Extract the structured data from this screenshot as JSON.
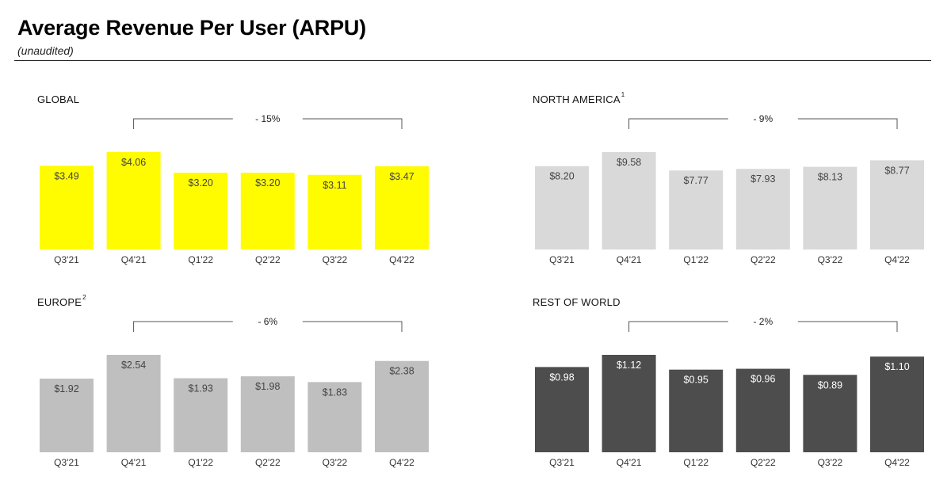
{
  "header": {
    "title": "Average Revenue Per User (ARPU)",
    "subtitle": "(unaudited)"
  },
  "chart_data": [
    {
      "type": "bar",
      "panel_title": "GLOBAL",
      "footnote": "",
      "categories": [
        "Q3'21",
        "Q4'21",
        "Q1'22",
        "Q2'22",
        "Q3'22",
        "Q4'22"
      ],
      "values": [
        3.49,
        4.06,
        3.2,
        3.2,
        3.11,
        3.47
      ],
      "value_labels": [
        "$3.49",
        "$4.06",
        "$3.20",
        "$3.20",
        "$3.11",
        "$3.47"
      ],
      "ylim": [
        0,
        4.06
      ],
      "change_label": "- 15%",
      "bar_color": "#FFFC00",
      "label_color": "#444444"
    },
    {
      "type": "bar",
      "panel_title": "NORTH AMERICA",
      "footnote": "1",
      "categories": [
        "Q3'21",
        "Q4'21",
        "Q1'22",
        "Q2'22",
        "Q3'22",
        "Q4'22"
      ],
      "values": [
        8.2,
        9.58,
        7.77,
        7.93,
        8.13,
        8.77
      ],
      "value_labels": [
        "$8.20",
        "$9.58",
        "$7.77",
        "$7.93",
        "$8.13",
        "$8.77"
      ],
      "ylim": [
        0,
        9.58
      ],
      "change_label": "- 9%",
      "bar_color": "#D9D9D9",
      "label_color": "#444444"
    },
    {
      "type": "bar",
      "panel_title": "EUROPE",
      "footnote": "2",
      "categories": [
        "Q3'21",
        "Q4'21",
        "Q1'22",
        "Q2'22",
        "Q3'22",
        "Q4'22"
      ],
      "values": [
        1.92,
        2.54,
        1.93,
        1.98,
        1.83,
        2.38
      ],
      "value_labels": [
        "$1.92",
        "$2.54",
        "$1.93",
        "$1.98",
        "$1.83",
        "$2.38"
      ],
      "ylim": [
        0,
        2.54
      ],
      "change_label": "- 6%",
      "bar_color": "#BFBFBF",
      "label_color": "#444444"
    },
    {
      "type": "bar",
      "panel_title": "REST OF WORLD",
      "footnote": "",
      "categories": [
        "Q3'21",
        "Q4'21",
        "Q1'22",
        "Q2'22",
        "Q3'22",
        "Q4'22"
      ],
      "values": [
        0.98,
        1.12,
        0.95,
        0.96,
        0.89,
        1.1
      ],
      "value_labels": [
        "$0.98",
        "$1.12",
        "$0.95",
        "$0.96",
        "$0.89",
        "$1.10"
      ],
      "ylim": [
        0,
        1.12
      ],
      "change_label": "- 2%",
      "bar_color": "#4D4D4D",
      "label_color": "#FFFFFF"
    }
  ]
}
